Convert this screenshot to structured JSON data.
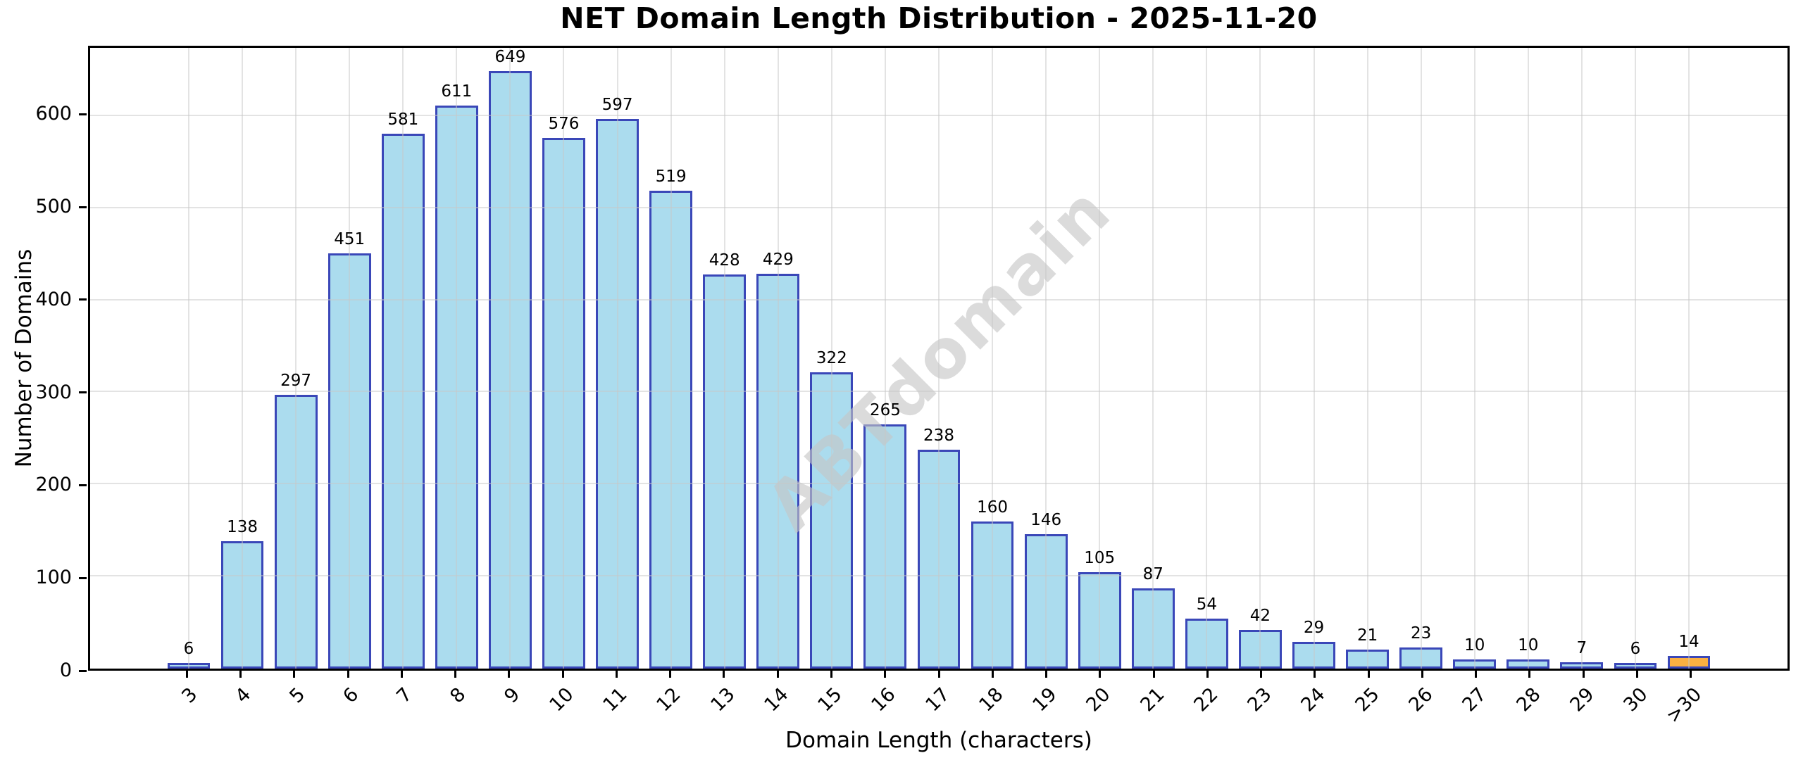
{
  "watermark": "ABTdomain",
  "chart_data": {
    "type": "bar",
    "title": "NET Domain Length Distribution - 2025-11-20",
    "xlabel": "Domain Length (characters)",
    "ylabel": "Number of Domains",
    "categories": [
      "3",
      "4",
      "5",
      "6",
      "7",
      "8",
      "9",
      "10",
      "11",
      "12",
      "13",
      "14",
      "15",
      "16",
      "17",
      "18",
      "19",
      "20",
      "21",
      "22",
      "23",
      "24",
      "25",
      "26",
      "27",
      "28",
      "29",
      "30",
      ">30"
    ],
    "values": [
      6,
      138,
      297,
      451,
      581,
      611,
      649,
      576,
      597,
      519,
      428,
      429,
      322,
      265,
      238,
      160,
      146,
      105,
      87,
      54,
      42,
      29,
      21,
      23,
      10,
      10,
      7,
      6,
      14
    ],
    "yticks": [
      0,
      100,
      200,
      300,
      400,
      500,
      600
    ],
    "ylim": [
      0,
      674
    ],
    "grid": true,
    "grid_above_bars": true,
    "legend": "none",
    "bar_color": "#ABDCEE",
    "bar_edge_color": "#3A47B8",
    "highlight_index": 28,
    "highlight_color": "#FBB042",
    "x_tick_rotation_deg": 45
  }
}
